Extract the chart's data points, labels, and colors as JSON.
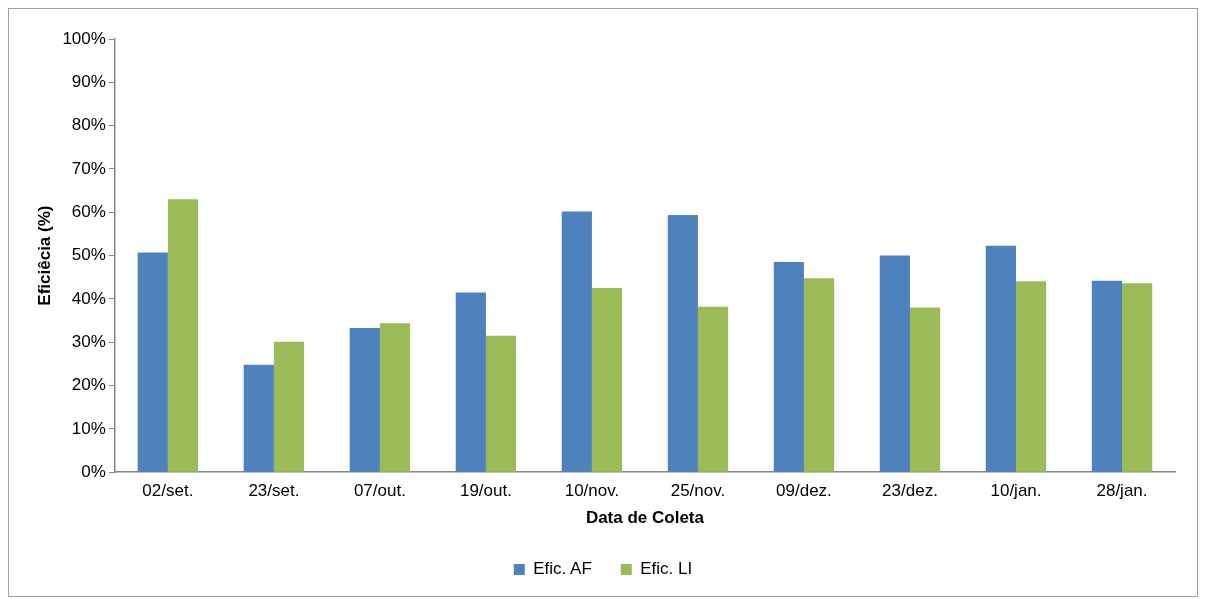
{
  "chart_data": {
    "type": "bar",
    "xlabel": "Data de Coleta",
    "ylabel": "Eficiêcia (%)",
    "categories": [
      "02/set.",
      "23/set.",
      "07/out.",
      "19/out.",
      "10/nov.",
      "25/nov.",
      "09/dez.",
      "23/dez.",
      "10/jan.",
      "28/jan."
    ],
    "series": [
      {
        "name": "Efic. AF",
        "color": "#4f81bd",
        "values": [
          50.7,
          24.8,
          33.3,
          41.5,
          60.2,
          59.4,
          48.5,
          50.0,
          52.3,
          44.2
        ]
      },
      {
        "name": "Efic. LI",
        "color": "#9bbb59",
        "values": [
          63.0,
          30.1,
          34.4,
          31.5,
          42.5,
          38.2,
          44.8,
          38.0,
          44.1,
          43.6
        ]
      }
    ],
    "ylim": [
      0,
      100
    ],
    "yticks": [
      {
        "value": 0,
        "label": "0%"
      },
      {
        "value": 10,
        "label": "10%"
      },
      {
        "value": 20,
        "label": "20%"
      },
      {
        "value": 30,
        "label": "30%"
      },
      {
        "value": 40,
        "label": "40%"
      },
      {
        "value": 50,
        "label": "50%"
      },
      {
        "value": 60,
        "label": "60%"
      },
      {
        "value": 70,
        "label": "70%"
      },
      {
        "value": 80,
        "label": "80%"
      },
      {
        "value": 90,
        "label": "90%"
      },
      {
        "value": 100,
        "label": "100%"
      }
    ],
    "grid": false,
    "legend": "bottom"
  }
}
